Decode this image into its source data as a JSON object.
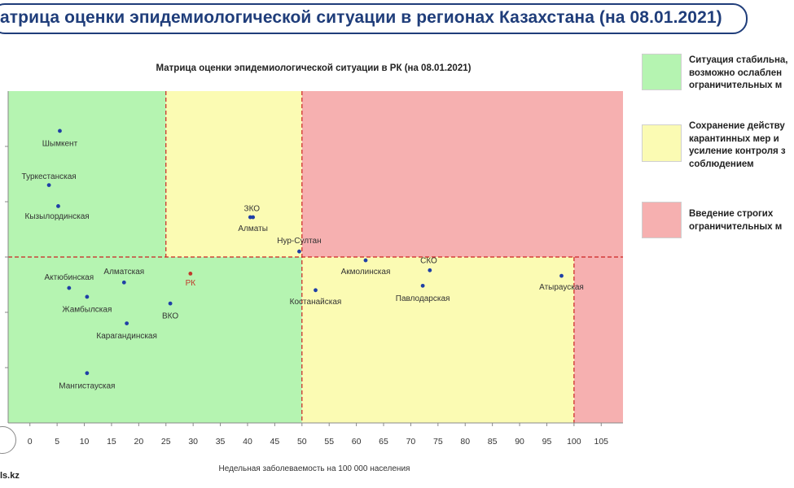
{
  "header": {
    "title": "атрица оценки эпидемиологической ситуации в регионах Казахстана (на 08.01.2021)"
  },
  "legend": [
    {
      "text": "Ситуация стабильна,\nвозможно ослаблен\nограничительных м",
      "color": "#b5f4b1"
    },
    {
      "text": "Сохранение действу\nкарантинных мер и\nусиление контроля з\nсоблюдением",
      "color": "#fbfbb3"
    },
    {
      "text": "Введение строгих\nограничительных м",
      "color": "#f6b0b0"
    }
  ],
  "source": {
    "text": "ls.kz"
  },
  "colors": {
    "green": "#b5f4b1",
    "yellow": "#fbfbb3",
    "red": "#f6b0b0",
    "point": "#1f3fa6",
    "rk_point": "#c0392b",
    "label": "#333333",
    "divider": "#cc2222"
  },
  "chart_data": {
    "type": "scatter",
    "title": "Матрица оценки эпидемиологической ситуации в РК (на 08.01.2021)",
    "xlabel": "Недельная заболеваемость на 100 000 населения",
    "ylabel": "",
    "xlim": [
      -4,
      109
    ],
    "xticks": [
      0,
      5,
      10,
      15,
      20,
      25,
      30,
      35,
      40,
      45,
      50,
      55,
      60,
      65,
      70,
      75,
      80,
      85,
      90,
      95,
      100,
      105
    ],
    "ylim": [
      0,
      3
    ],
    "yticks": [
      0.5,
      1.0,
      1.5,
      2.0,
      2.5
    ],
    "x_dividers": [
      25,
      50,
      100
    ],
    "y_divider": 1.5,
    "grid": false,
    "zones": [
      {
        "color": "green",
        "x": [
          -4,
          25
        ],
        "y": [
          1.5,
          3
        ]
      },
      {
        "color": "yellow",
        "x": [
          25,
          50
        ],
        "y": [
          1.5,
          3
        ]
      },
      {
        "color": "red",
        "x": [
          50,
          109
        ],
        "y": [
          1.5,
          3
        ]
      },
      {
        "color": "green",
        "x": [
          -4,
          50
        ],
        "y": [
          0,
          1.5
        ]
      },
      {
        "color": "yellow",
        "x": [
          50,
          100
        ],
        "y": [
          0,
          1.5
        ]
      },
      {
        "color": "red",
        "x": [
          100,
          109
        ],
        "y": [
          0,
          1.5
        ]
      }
    ],
    "points": [
      {
        "label": "Шымкент",
        "x": 5.5,
        "y": 2.64,
        "lx": 5.5,
        "ly": 2.53
      },
      {
        "label": "Туркестанская",
        "x": 3.5,
        "y": 2.15,
        "lx": 3.5,
        "ly": 2.23
      },
      {
        "label": "Кызылординская",
        "x": 5.2,
        "y": 1.96,
        "lx": 5.0,
        "ly": 1.87
      },
      {
        "label": "ЗКО",
        "x": 40.5,
        "y": 1.86,
        "lx": 40.8,
        "ly": 1.94
      },
      {
        "label": "Алматы",
        "x": 41.0,
        "y": 1.86,
        "lx": 41.0,
        "ly": 1.76
      },
      {
        "label": "Нур-Султан",
        "x": 49.5,
        "y": 1.55,
        "lx": 49.5,
        "ly": 1.65
      },
      {
        "label": "Актюбинская",
        "x": 7.2,
        "y": 1.22,
        "lx": 7.2,
        "ly": 1.32
      },
      {
        "label": "Алматская",
        "x": 17.3,
        "y": 1.27,
        "lx": 17.3,
        "ly": 1.37
      },
      {
        "label": "РК",
        "x": 29.5,
        "y": 1.35,
        "lx": 29.5,
        "ly": 1.27,
        "highlight": true
      },
      {
        "label": "Жамбылская",
        "x": 10.5,
        "y": 1.14,
        "lx": 10.5,
        "ly": 1.03
      },
      {
        "label": "ВКО",
        "x": 25.8,
        "y": 1.08,
        "lx": 25.8,
        "ly": 0.97
      },
      {
        "label": "Карагандинская",
        "x": 17.8,
        "y": 0.9,
        "lx": 17.8,
        "ly": 0.79
      },
      {
        "label": "Мангистауская",
        "x": 10.5,
        "y": 0.45,
        "lx": 10.5,
        "ly": 0.34
      },
      {
        "label": "Костанайская",
        "x": 52.5,
        "y": 1.2,
        "lx": 52.5,
        "ly": 1.1
      },
      {
        "label": "Акмолинская",
        "x": 61.7,
        "y": 1.47,
        "lx": 61.7,
        "ly": 1.37
      },
      {
        "label": "СКО",
        "x": 73.5,
        "y": 1.38,
        "lx": 73.3,
        "ly": 1.47
      },
      {
        "label": "Павлодарская",
        "x": 72.2,
        "y": 1.24,
        "lx": 72.2,
        "ly": 1.13
      },
      {
        "label": "Атырауская",
        "x": 97.7,
        "y": 1.33,
        "lx": 97.7,
        "ly": 1.23
      }
    ]
  }
}
